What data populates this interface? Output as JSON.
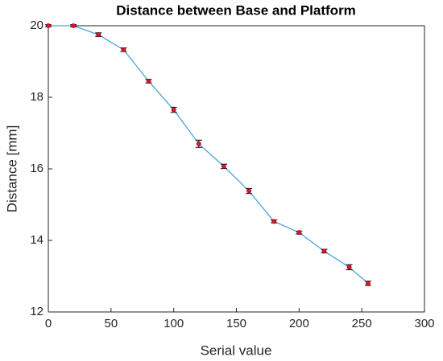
{
  "chart_data": {
    "type": "errorbar-line",
    "title": "Distance between Base and Platform",
    "x_label": "Serial value",
    "y_label": "Distance [mm]",
    "x": [
      0,
      20,
      40,
      60,
      80,
      100,
      120,
      140,
      160,
      180,
      200,
      220,
      240,
      255
    ],
    "values": [
      20,
      20,
      19.75,
      19.33,
      18.45,
      17.65,
      16.7,
      16.07,
      15.38,
      14.53,
      14.22,
      13.7,
      13.25,
      12.8
    ],
    "errors": [
      0.03,
      0.03,
      0.05,
      0.05,
      0.05,
      0.07,
      0.1,
      0.06,
      0.07,
      0.04,
      0.04,
      0.05,
      0.07,
      0.06
    ],
    "line_color": "#4ba3dc",
    "marker_color": "#e8102a",
    "errorbar_color": "#222222",
    "xlim": [
      0,
      300
    ],
    "xticks": [
      0,
      50,
      100,
      150,
      200,
      250,
      300
    ],
    "ylim": [
      12,
      20
    ],
    "yticks": [
      12,
      14,
      16,
      18,
      20
    ]
  }
}
